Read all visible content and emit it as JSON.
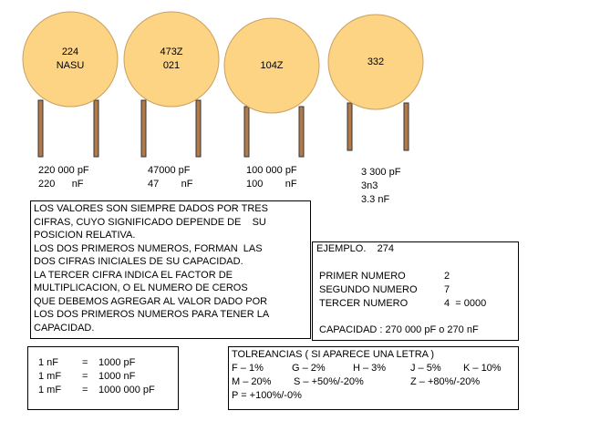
{
  "capacitors": [
    {
      "code": [
        "224",
        "NASU"
      ],
      "values": [
        "220 000 pF",
        "220      nF"
      ]
    },
    {
      "code": [
        "473Z",
        "021"
      ],
      "values": [
        "47000 pF",
        "47        nF"
      ]
    },
    {
      "code": [
        "104Z"
      ],
      "values": [
        "100 000 pF",
        "100        nF"
      ]
    },
    {
      "code": [
        "332"
      ],
      "values": [
        "3 300 pF",
        "3n3",
        "3.3 nF"
      ]
    }
  ],
  "notes": [
    "LOS VALORES SON SIEMPRE DADOS POR TRES",
    "CIFRAS, CUYO SIGNIFICADO DEPENDE DE    SU",
    "POSICION RELATIVA.",
    "LOS DOS PRIMEROS NUMEROS, FORMAN  LAS",
    "DOS CIFRAS INICIALES DE SU CAPACIDAD.",
    "LA TERCER CIFRA INDICA EL FACTOR DE",
    "MULTIPLICACION, O EL NUMERO DE CEROS",
    "QUE DEBEMOS AGREGAR AL VALOR DADO POR",
    "LOS DOS PRIMEROS NUMEROS PARA TENER LA",
    "CAPACIDAD."
  ],
  "example": {
    "title": "EJEMPLO.    274",
    "rows": [
      [
        "PRIMER NUMERO",
        "2"
      ],
      [
        "SEGUNDO NUMERO",
        "7"
      ],
      [
        "TERCER NUMERO",
        "4  = 0000"
      ]
    ],
    "result": "CAPACIDAD : 270 000 pF o 270 nF"
  },
  "equivalences": [
    [
      "1 nF",
      "=",
      "1000 pF"
    ],
    [
      "1 mF",
      "=",
      "1000 nF"
    ],
    [
      "1 mF",
      "=",
      "1000 000 pF"
    ]
  ],
  "tolerances": {
    "title": "TOLREANCIAS ( SI APARECE UNA LETRA )",
    "rows": [
      [
        "F – 1%",
        "G – 2%",
        "H – 3%",
        "J – 5%",
        "K – 10%"
      ],
      [
        "M – 20%",
        "S – +50%/-20%",
        "Z – +80%/-20%"
      ],
      [
        "P = +100%/-0%"
      ]
    ]
  }
}
